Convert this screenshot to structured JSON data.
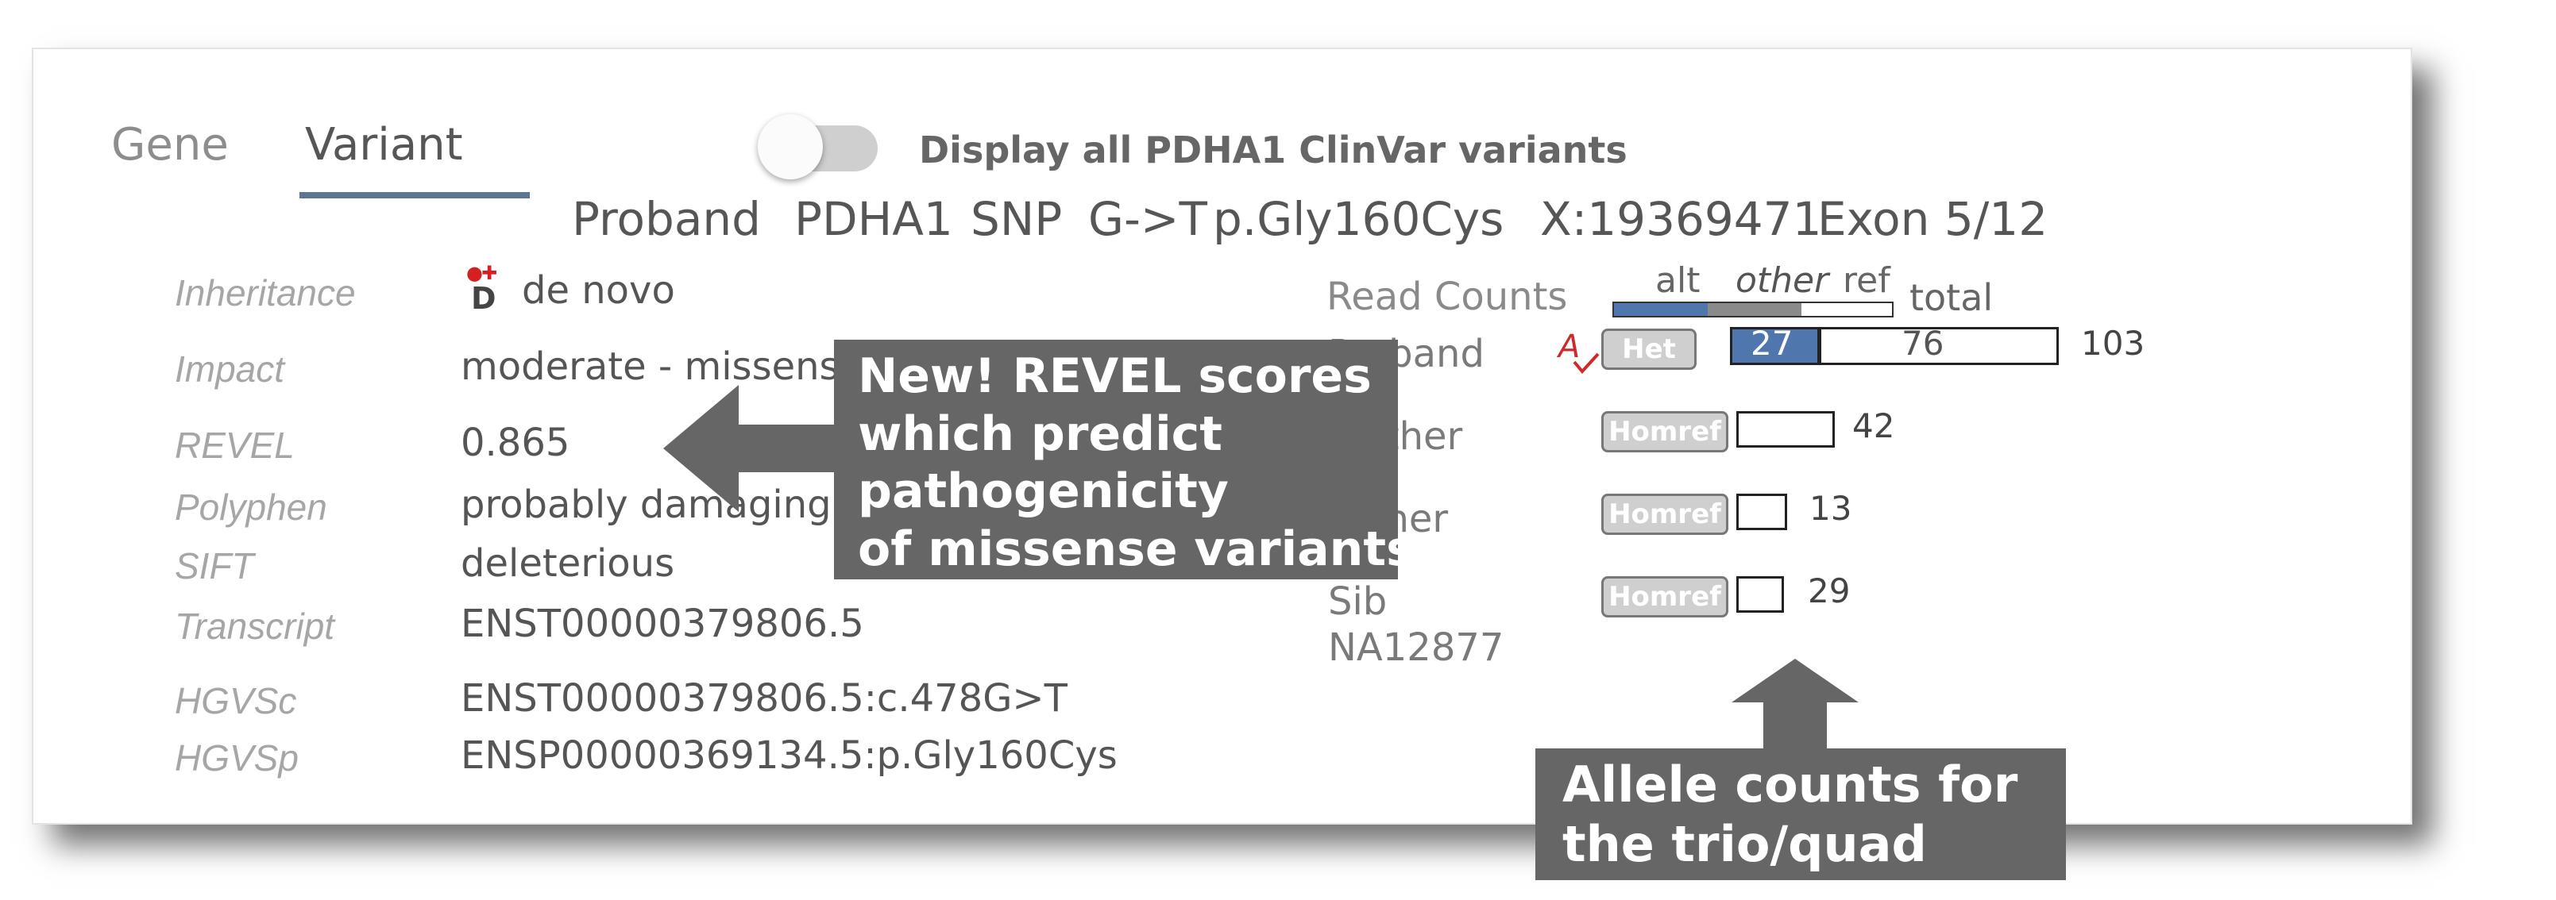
{
  "tabs": {
    "gene": "Gene",
    "variant": "Variant"
  },
  "toggle": {
    "label": "Display all PDHA1 ClinVar variants"
  },
  "header": {
    "sample": "Proband",
    "gene": "PDHA1",
    "type": "SNP",
    "change": "G->T",
    "protein": "p.Gly160Cys",
    "position": "X:19369471",
    "exon": "Exon 5/12"
  },
  "details": {
    "inheritance": {
      "label": "Inheritance",
      "value": "de novo",
      "icon_letter": "D",
      "icon_marks": "●✚"
    },
    "impact": {
      "label": "Impact",
      "value": "moderate - missense variant"
    },
    "revel": {
      "label": "REVEL",
      "value": "0.865"
    },
    "polyphen": {
      "label": "Polyphen",
      "value": "probably damaging"
    },
    "sift": {
      "label": "SIFT",
      "value": "deleterious"
    },
    "transcript": {
      "label": "Transcript",
      "value": "ENST00000379806.5"
    },
    "hgvsc": {
      "label": "HGVSc",
      "value": "ENST00000379806.5:c.478G>T"
    },
    "hgvsp": {
      "label": "HGVSp",
      "value": "ENSP00000369134.5:p.Gly160Cys"
    }
  },
  "read_counts": {
    "title": "Read Counts",
    "legend": {
      "alt": "alt",
      "other": "other",
      "ref": "ref",
      "total": "total"
    },
    "colors": {
      "alt": "#4f77ad",
      "other": "#8a8a8a"
    },
    "members": [
      {
        "name": "Proband",
        "zygosity": "Het",
        "alt": "27",
        "ref": "76",
        "total": "103",
        "alt_fraction": 0.262,
        "alert_icon": "A"
      },
      {
        "name": "Mother",
        "zygosity": "Homref",
        "total": "42"
      },
      {
        "name": "Father",
        "zygosity": "Homref",
        "total": "13"
      },
      {
        "name": "Sib",
        "name_line2": "NA12877",
        "zygosity": "Homref",
        "total": "29"
      }
    ]
  },
  "callouts": {
    "revel": "New! REVEL scores\nwhich predict\npathogenicity\nof missense variants",
    "allele": "Allele counts for\nthe trio/quad"
  }
}
